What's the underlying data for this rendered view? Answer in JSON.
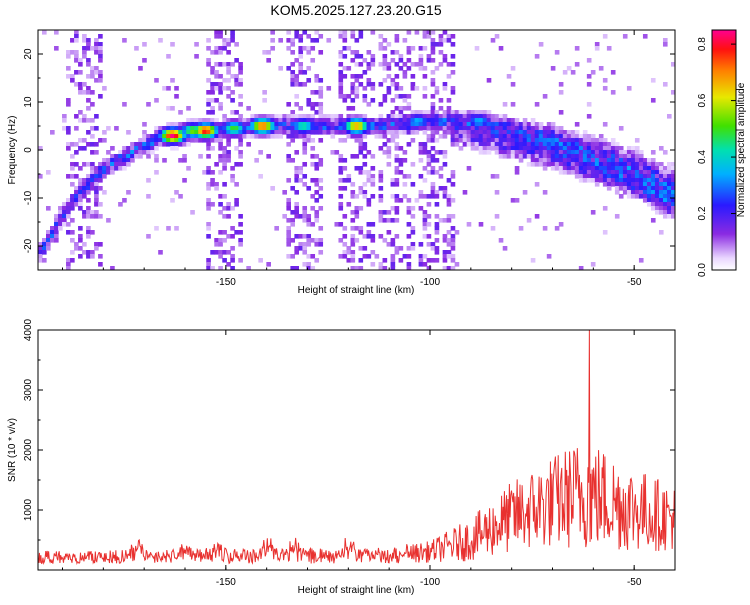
{
  "title": "KOM5.2025.127.23.20.G15",
  "chart_data": [
    {
      "type": "heatmap",
      "xlabel": "Height of straight line (km)",
      "ylabel": "Frequency (Hz)",
      "xlim": [
        -196,
        -40
      ],
      "ylim": [
        -25,
        25
      ],
      "xticks": [
        -150,
        -100,
        -50
      ],
      "yticks": [
        -20,
        -10,
        0,
        10,
        20
      ],
      "colorbar": {
        "label": "Normalized spectral amplitude",
        "range": [
          0,
          0.85
        ],
        "ticks": [
          "0.0",
          "0.2",
          "0.4",
          "0.6",
          "0.8"
        ]
      },
      "ridge": {
        "points": [
          {
            "x": -195,
            "y": -21
          },
          {
            "x": -188,
            "y": -11
          },
          {
            "x": -180,
            "y": -4
          },
          {
            "x": -172,
            "y": 0
          },
          {
            "x": -165,
            "y": 3
          },
          {
            "x": -155,
            "y": 4
          },
          {
            "x": -140,
            "y": 5
          },
          {
            "x": -125,
            "y": 5
          },
          {
            "x": -110,
            "y": 5
          },
          {
            "x": -100,
            "y": 6
          },
          {
            "x": -90,
            "y": 6
          },
          {
            "x": -80,
            "y": 4
          },
          {
            "x": -70,
            "y": 2
          },
          {
            "x": -60,
            "y": -1
          },
          {
            "x": -50,
            "y": -4
          },
          {
            "x": -42,
            "y": -8
          }
        ],
        "peaks": [
          {
            "x": -163,
            "y": 3,
            "amp": 0.85
          },
          {
            "x": -155,
            "y": 4,
            "amp": 0.8
          },
          {
            "x": -141,
            "y": 5,
            "amp": 0.75
          },
          {
            "x": -118,
            "y": 5,
            "amp": 0.7
          },
          {
            "x": -158,
            "y": 4,
            "amp": 0.55
          },
          {
            "x": -148,
            "y": 4.5,
            "amp": 0.5
          },
          {
            "x": -131,
            "y": 5,
            "amp": 0.45
          },
          {
            "x": -103,
            "y": 6,
            "amp": 0.35
          },
          {
            "x": -88,
            "y": 6,
            "amp": 0.35
          }
        ]
      }
    },
    {
      "type": "line",
      "xlabel": "Height of straight line (km)",
      "ylabel": "SNR (10 * v/v)",
      "xlim": [
        -196,
        -40
      ],
      "ylim": [
        0,
        4000
      ],
      "xticks": [
        -150,
        -100,
        -50
      ],
      "yticks": [
        1000,
        2000,
        3000,
        4000
      ],
      "color": "#e8312f",
      "envelope": [
        {
          "x": -196,
          "baseline": 180,
          "spread": 180
        },
        {
          "x": -110,
          "baseline": 200,
          "spread": 220
        },
        {
          "x": -100,
          "baseline": 250,
          "spread": 300
        },
        {
          "x": -90,
          "baseline": 400,
          "spread": 600
        },
        {
          "x": -80,
          "baseline": 700,
          "spread": 1000
        },
        {
          "x": -70,
          "baseline": 900,
          "spread": 1300
        },
        {
          "x": -62,
          "baseline": 1000,
          "spread": 1600
        },
        {
          "x": -50,
          "baseline": 800,
          "spread": 1200
        },
        {
          "x": -40,
          "baseline": 700,
          "spread": 900
        }
      ],
      "max": {
        "x": -61,
        "y": 4000
      }
    }
  ]
}
